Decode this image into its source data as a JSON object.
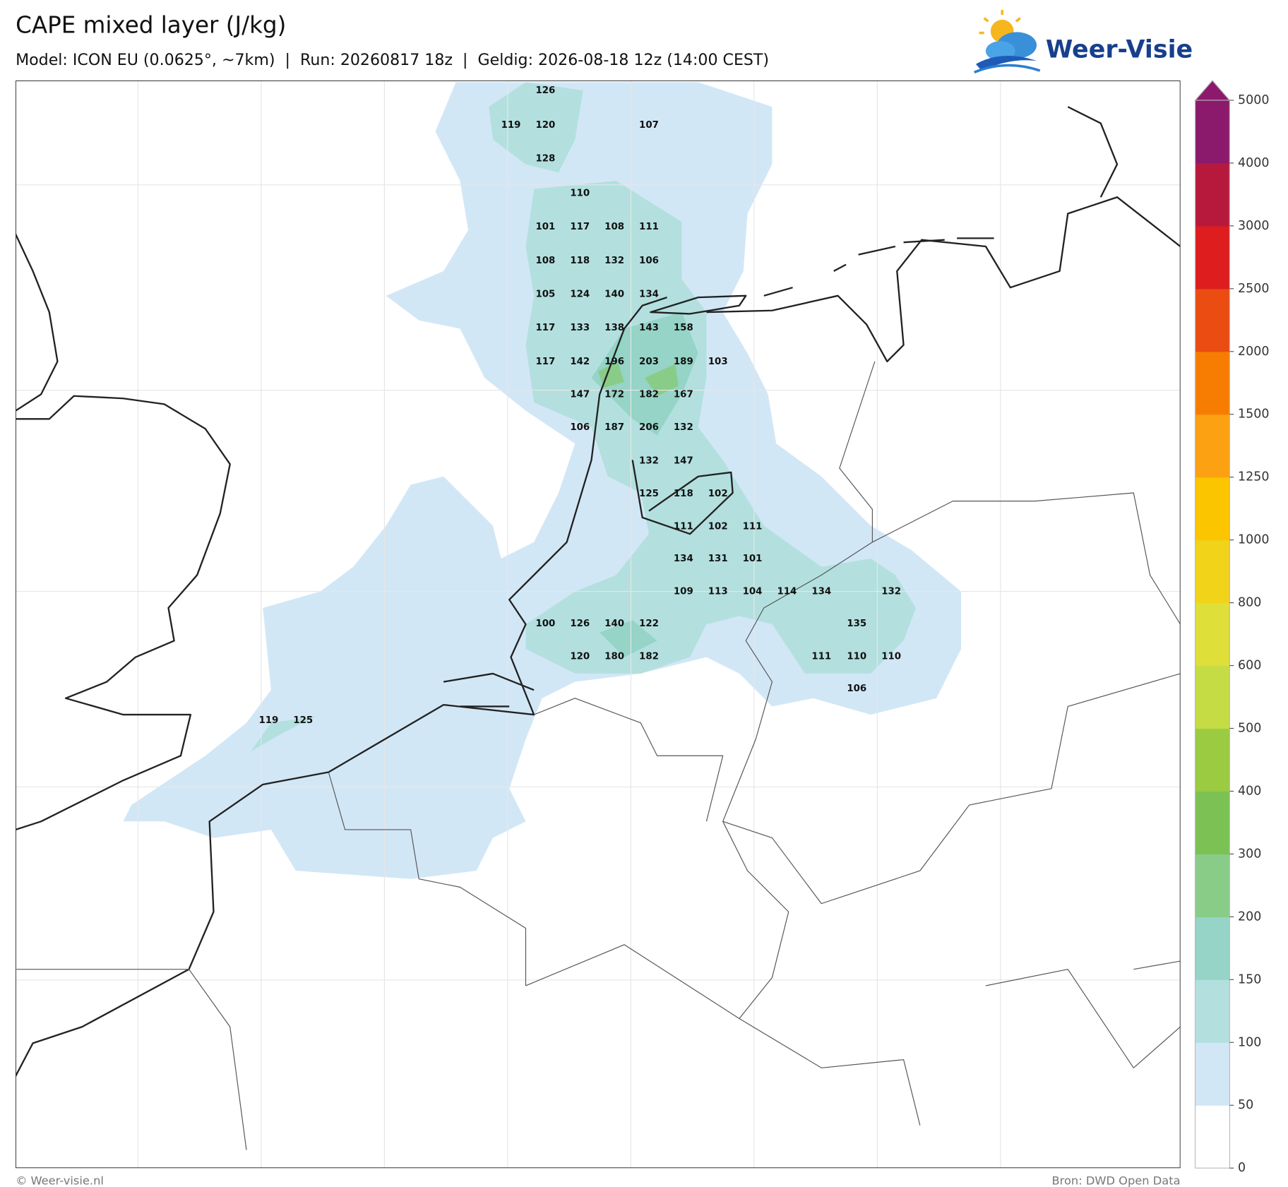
{
  "header": {
    "title": "CAPE mixed layer (J/kg)",
    "subtitle": "Model: ICON EU (0.0625°, ~7km)  |  Run: 20260817 18z  |  Geldig: 2026-08-18 12z (14:00 CEST)"
  },
  "logo": "Weer-Visie",
  "map": {
    "labels": [
      126,
      119,
      120,
      107,
      128,
      110,
      101,
      117,
      108,
      111,
      108,
      118,
      132,
      106,
      105,
      124,
      140,
      134,
      117,
      133,
      138,
      143,
      158,
      117,
      142,
      196,
      203,
      189,
      103,
      147,
      172,
      182,
      167,
      106,
      187,
      206,
      132,
      132,
      147,
      125,
      118,
      102,
      111,
      102,
      111,
      134,
      131,
      101,
      109,
      113,
      104,
      114,
      134,
      132,
      100,
      126,
      140,
      122,
      135,
      120,
      180,
      182,
      111,
      110,
      110,
      106,
      119,
      125
    ]
  },
  "colorbar": {
    "levels": [
      0,
      50,
      100,
      150,
      200,
      300,
      400,
      500,
      600,
      800,
      1000,
      1250,
      1500,
      2000,
      2500,
      3000,
      4000,
      5000
    ],
    "colors": [
      "#ffffff",
      "#d2e7f6",
      "#b3e0df",
      "#95d4c6",
      "#89cc88",
      "#7cc153",
      "#9acb41",
      "#c5dc45",
      "#dfdf3a",
      "#f1d31a",
      "#fbc500",
      "#fba112",
      "#f77d02",
      "#ea4c12",
      "#dd1d1e",
      "#b7193d",
      "#8b1a6d"
    ],
    "extend": "max"
  },
  "footer": {
    "left": "© Weer-visie.nl",
    "right": "Bron: DWD Open Data"
  }
}
